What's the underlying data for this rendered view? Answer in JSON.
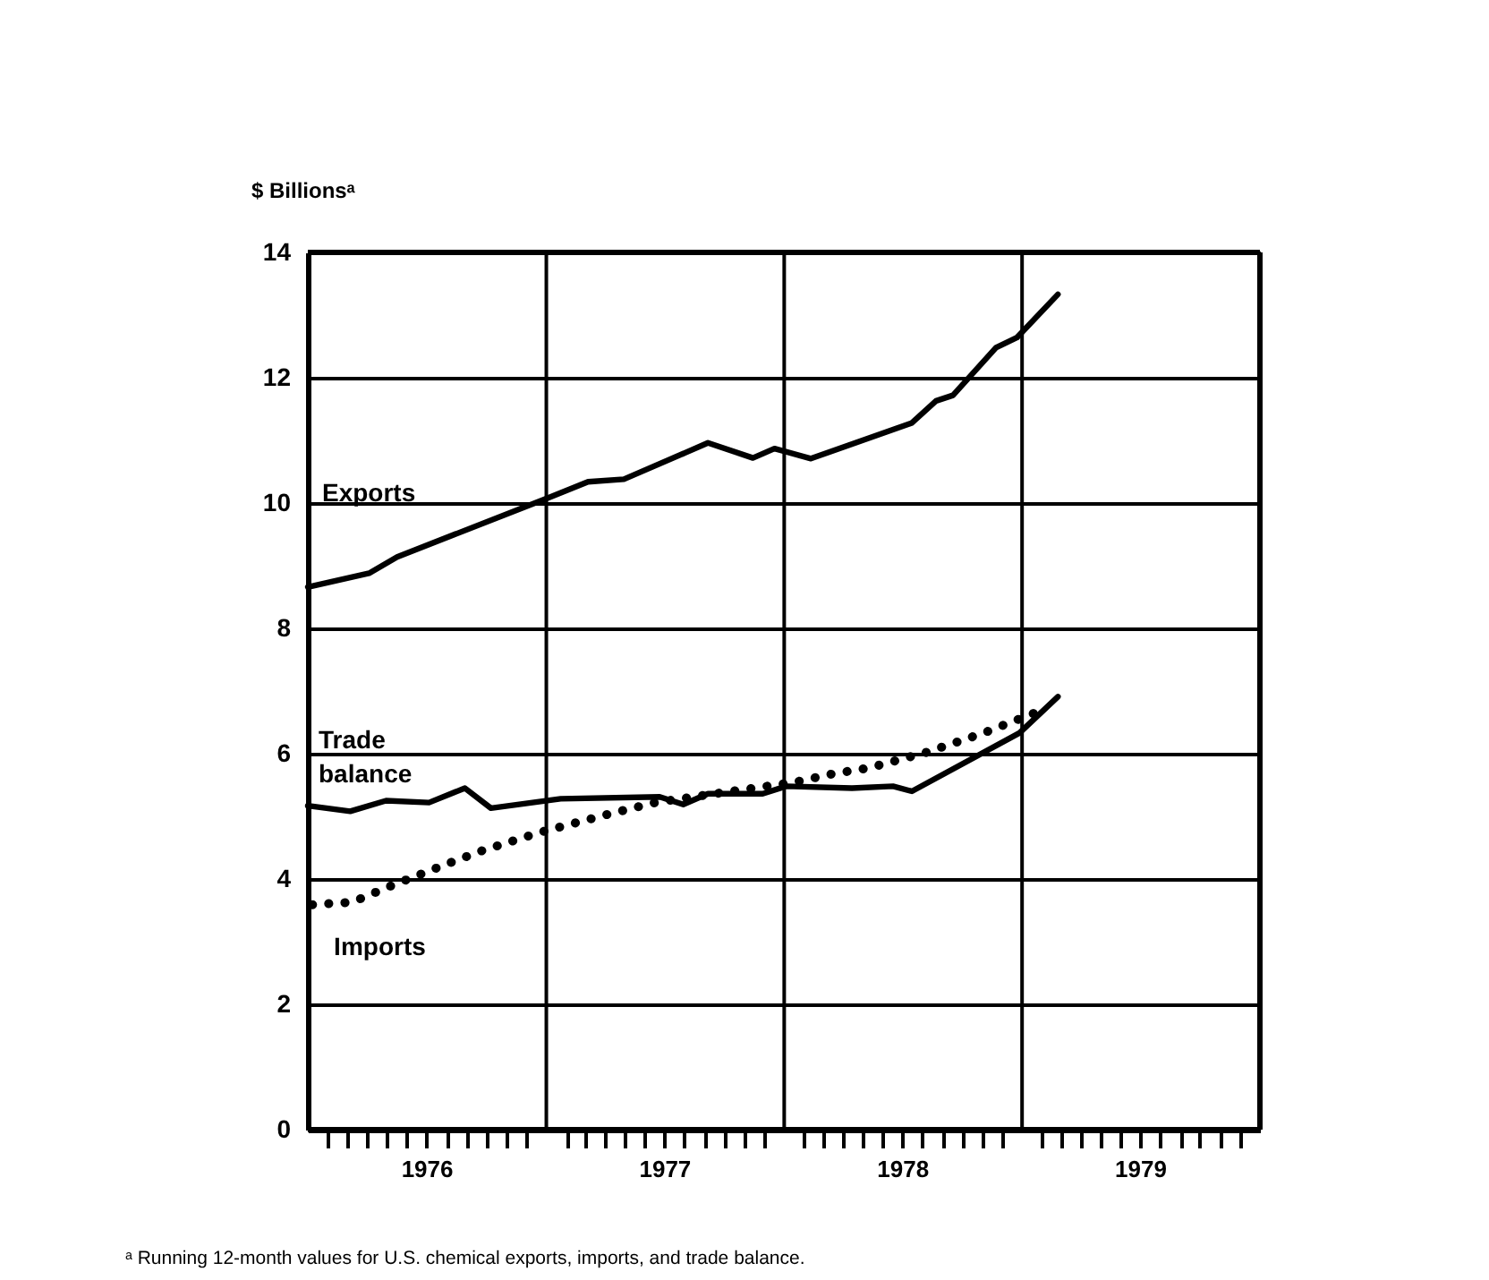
{
  "chart_data": {
    "type": "line",
    "ylabel": "$ Billionsᵃ",
    "annotations": [
      "ᵃ Running 12-month values for U.S. chemical exports, imports, and trade balance."
    ],
    "xlim": [
      "1976-01",
      "1980-01"
    ],
    "ylim": [
      0,
      14
    ],
    "yticks": [
      0,
      2,
      4,
      6,
      8,
      10,
      12,
      14
    ],
    "xticks": [
      {
        "value": "1976-02",
        "label": null
      },
      {
        "value": "1976-03",
        "label": null
      },
      {
        "value": "1976-04",
        "label": null
      },
      {
        "value": "1976-05",
        "label": null
      },
      {
        "value": "1976-06",
        "label": null
      },
      {
        "value": "1976-07",
        "label": "1976"
      },
      {
        "value": "1976-08",
        "label": null
      },
      {
        "value": "1976-09",
        "label": null
      },
      {
        "value": "1976-10",
        "label": null
      },
      {
        "value": "1976-11",
        "label": null
      },
      {
        "value": "1976-12",
        "label": null
      },
      {
        "value": "1977-02",
        "label": null
      },
      {
        "value": "1977-03",
        "label": null
      },
      {
        "value": "1977-04",
        "label": null
      },
      {
        "value": "1977-05",
        "label": null
      },
      {
        "value": "1977-06",
        "label": null
      },
      {
        "value": "1977-07",
        "label": "1977"
      },
      {
        "value": "1977-08",
        "label": null
      },
      {
        "value": "1977-09",
        "label": null
      },
      {
        "value": "1977-10",
        "label": null
      },
      {
        "value": "1977-11",
        "label": null
      },
      {
        "value": "1977-12",
        "label": null
      },
      {
        "value": "1978-02",
        "label": null
      },
      {
        "value": "1978-03",
        "label": null
      },
      {
        "value": "1978-04",
        "label": null
      },
      {
        "value": "1978-05",
        "label": null
      },
      {
        "value": "1978-06",
        "label": null
      },
      {
        "value": "1978-07",
        "label": "1978"
      },
      {
        "value": "1978-08",
        "label": null
      },
      {
        "value": "1978-09",
        "label": null
      },
      {
        "value": "1978-10",
        "label": null
      },
      {
        "value": "1978-11",
        "label": null
      },
      {
        "value": "1978-12",
        "label": null
      },
      {
        "value": "1979-02",
        "label": null
      },
      {
        "value": "1979-03",
        "label": null
      },
      {
        "value": "1979-04",
        "label": null
      },
      {
        "value": "1979-05",
        "label": null
      },
      {
        "value": "1979-06",
        "label": null
      },
      {
        "value": "1979-07",
        "label": "1979"
      },
      {
        "value": "1979-08",
        "label": null
      },
      {
        "value": "1979-09",
        "label": null
      },
      {
        "value": "1979-10",
        "label": null
      },
      {
        "value": "1979-11",
        "label": null
      },
      {
        "value": "1979-12",
        "label": null
      }
    ],
    "grid": "y",
    "ref_lines": [
      {
        "axis": "x",
        "value": "1977-01"
      },
      {
        "axis": "x",
        "value": "1978-01"
      },
      {
        "axis": "x",
        "value": "1979-01"
      }
    ],
    "legend": false,
    "series": [
      {
        "name": "Exports",
        "color": "#000000",
        "line_style": "solid",
        "x": [
          "1976-01-01",
          "1976-04-04",
          "1976-05-17",
          "1977-01-08",
          "1977-03-06",
          "1977-04-30",
          "1977-09-06",
          "1977-11-14",
          "1977-12-17",
          "1978-02-11",
          "1978-07-16",
          "1978-08-22",
          "1978-09-17",
          "1978-11-22",
          "1978-12-24",
          "1979-02-25"
        ],
        "values": [
          8.66,
          8.88,
          9.14,
          10.1,
          10.34,
          10.38,
          10.96,
          10.72,
          10.87,
          10.71,
          11.28,
          11.63,
          11.72,
          12.48,
          12.64,
          13.33
        ]
      },
      {
        "name": "Trade balance",
        "color": "#000000",
        "line_style": "solid",
        "x": [
          "1976-01-01",
          "1976-03-06",
          "1976-04-30",
          "1976-07-05",
          "1976-08-29",
          "1976-10-08",
          "1977-01-23",
          "1977-06-24",
          "1977-07-30",
          "1977-09-06",
          "1977-11-29",
          "1978-01-04",
          "1978-04-15",
          "1978-06-17",
          "1978-07-16",
          "1978-12-28",
          "1979-02-25"
        ],
        "values": [
          5.17,
          5.08,
          5.25,
          5.22,
          5.45,
          5.13,
          5.28,
          5.31,
          5.19,
          5.36,
          5.36,
          5.48,
          5.45,
          5.48,
          5.4,
          6.33,
          6.91
        ]
      },
      {
        "name": "Imports",
        "color": "#000000",
        "line_style": "dotted",
        "x": [
          "1976-01-08",
          "1976-03-09",
          "1976-05-10",
          "1976-07-30",
          "1976-09-24",
          "1976-12-24",
          "1977-04-12",
          "1977-06-17",
          "1977-10-12",
          "1978-01-15",
          "1978-03-17",
          "1978-05-10",
          "1978-08-07",
          "1978-11-03",
          "1979-01-30"
        ],
        "values": [
          3.59,
          3.63,
          3.9,
          4.23,
          4.45,
          4.75,
          5.05,
          5.22,
          5.4,
          5.54,
          5.68,
          5.77,
          6.02,
          6.33,
          6.69
        ]
      }
    ]
  }
}
